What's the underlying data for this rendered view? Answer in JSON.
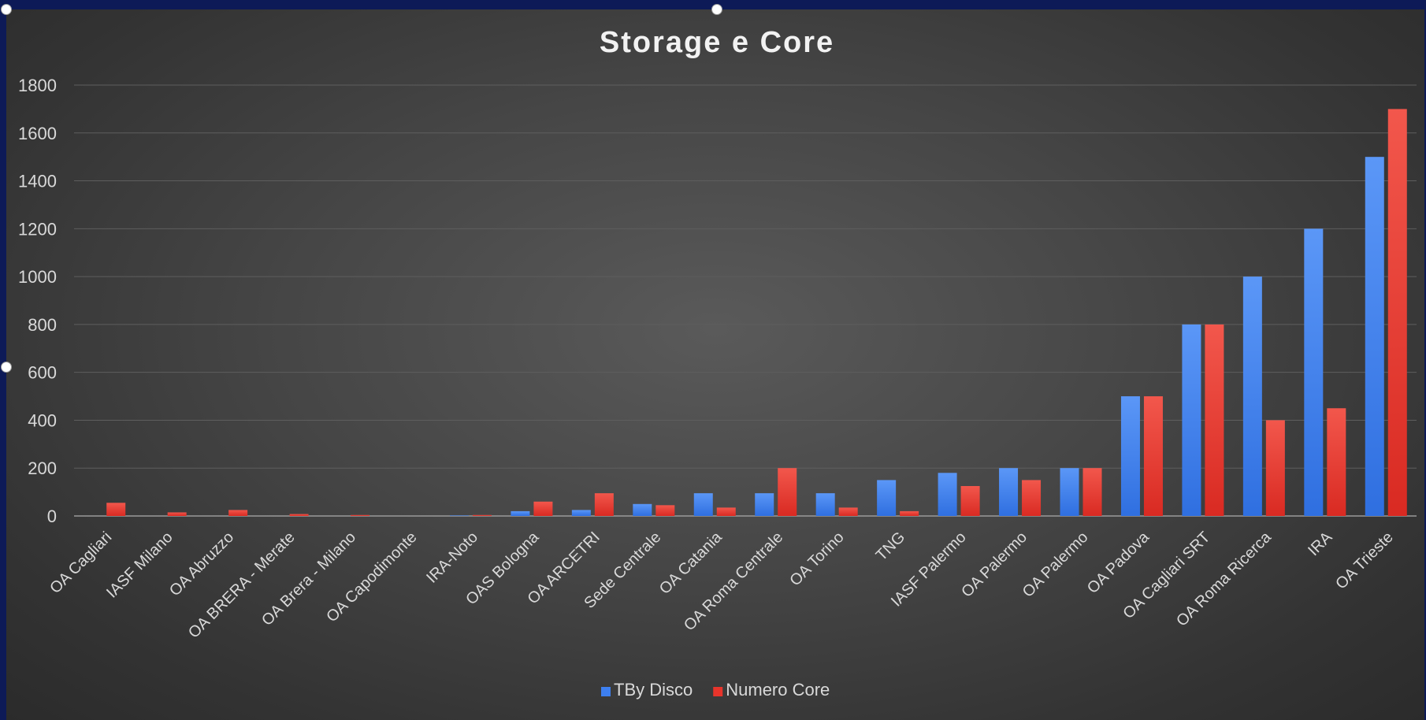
{
  "chart_data": {
    "type": "bar",
    "title": "Storage e Core",
    "xlabel": "",
    "ylabel": "",
    "ylim": [
      0,
      1800
    ],
    "yticks": [
      0,
      200,
      400,
      600,
      800,
      1000,
      1200,
      1400,
      1600,
      1800
    ],
    "grid": true,
    "legend_position": "bottom",
    "categories": [
      "OA Cagliari",
      "IASF Milano",
      "OA Abruzzo",
      "OA BRERA - Merate",
      "OA Brera - Milano",
      "OA Capodimonte",
      "IRA-Noto",
      "OAS Bologna",
      "OA ARCETRI",
      "Sede Centrale",
      "OA Catania",
      "OA Roma Centrale",
      "OA Torino",
      "TNG",
      "IASF Palermo",
      "OA Palermo",
      "OA Palermo",
      "OA Padova",
      "OA Cagliari SRT",
      "OA Roma Ricerca",
      "IRA",
      "OA Trieste"
    ],
    "series": [
      {
        "name": "TBy Disco",
        "color": "#3d7ff0",
        "values": [
          0,
          0,
          0,
          0,
          0,
          0,
          2,
          20,
          25,
          50,
          95,
          95,
          95,
          150,
          180,
          200,
          200,
          500,
          800,
          1000,
          1200,
          1500
        ]
      },
      {
        "name": "Numero Core",
        "color": "#e8342b",
        "values": [
          55,
          15,
          25,
          8,
          4,
          0,
          4,
          60,
          95,
          45,
          35,
          200,
          35,
          20,
          125,
          150,
          200,
          500,
          800,
          400,
          450,
          1700
        ]
      }
    ]
  }
}
